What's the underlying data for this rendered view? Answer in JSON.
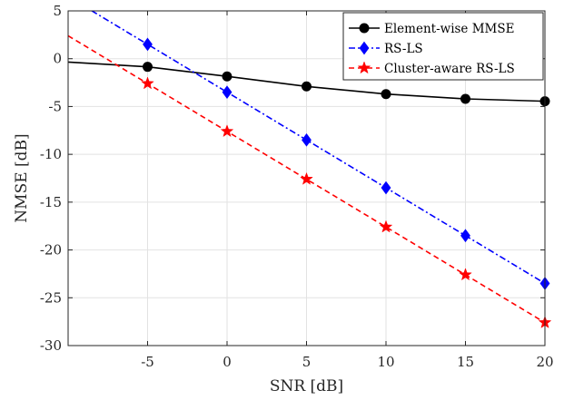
{
  "chart_data": {
    "type": "line",
    "xlabel": "SNR [dB]",
    "ylabel": "NMSE [dB]",
    "xlim": [
      -10,
      20
    ],
    "ylim": [
      -30,
      5
    ],
    "xticks": [
      -5,
      0,
      5,
      10,
      15,
      20
    ],
    "yticks": [
      5,
      0,
      -5,
      -10,
      -15,
      -20,
      -25,
      -30
    ],
    "xtick_labels": [
      "-5",
      "0",
      "5",
      "10",
      "15",
      "20"
    ],
    "ytick_labels": [
      "5",
      "0",
      "-5",
      "-10",
      "-15",
      "-20",
      "-25",
      "-30"
    ],
    "grid": true,
    "legend_position": "top-right",
    "series": [
      {
        "name": "Element-wise MMSE",
        "color": "#000000",
        "line_style": "solid",
        "marker": "circle",
        "x": [
          -10,
          -5,
          0,
          5,
          10,
          15,
          20
        ],
        "y": [
          -0.35,
          -0.85,
          -1.85,
          -2.9,
          -3.7,
          -4.2,
          -4.45
        ]
      },
      {
        "name": "RS-LS",
        "color": "#0000ff",
        "line_style": "dashdot",
        "marker": "diamond",
        "x": [
          -10,
          -5,
          0,
          5,
          10,
          15,
          20
        ],
        "y": [
          6.5,
          1.5,
          -3.5,
          -8.5,
          -13.5,
          -18.5,
          -23.5
        ]
      },
      {
        "name": "Cluster-aware RS-LS",
        "color": "#ff0000",
        "line_style": "dashed",
        "marker": "star",
        "x": [
          -10,
          -5,
          0,
          5,
          10,
          15,
          20
        ],
        "y": [
          2.4,
          -2.6,
          -7.6,
          -12.6,
          -17.6,
          -22.6,
          -27.6
        ]
      }
    ]
  }
}
